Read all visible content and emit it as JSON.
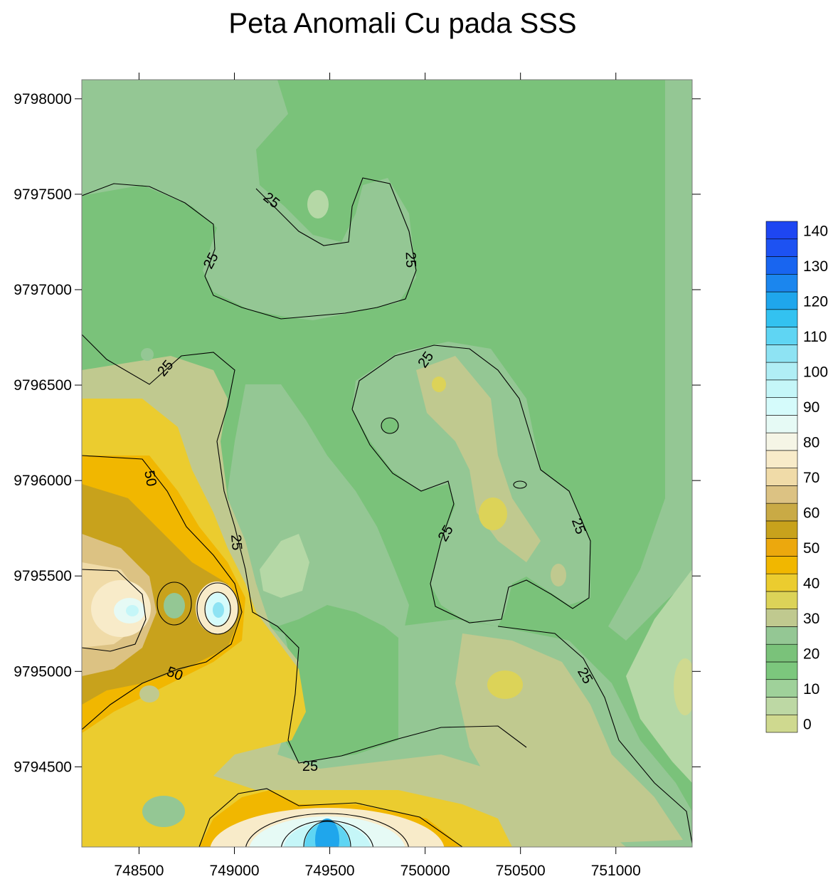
{
  "chart_data": {
    "type": "heatmap",
    "subtype": "filled-contour-map",
    "title": "Peta Anomali Cu pada SSS",
    "x_ticks": [
      748500,
      749000,
      749500,
      750000,
      750500,
      751000
    ],
    "y_ticks": [
      9794500,
      9795000,
      9795500,
      9796000,
      9796500,
      9797000,
      9797500,
      9798000
    ],
    "x_tick_labels": [
      "748500",
      "749000",
      "749500",
      "750000",
      "750500",
      "751000"
    ],
    "y_tick_labels": [
      "9794500",
      "9795000",
      "9795500",
      "9796000",
      "9796500",
      "9797000",
      "9797500",
      "9798000"
    ],
    "xlim": [
      748200,
      751400
    ],
    "ylim": [
      9794080,
      9798100
    ],
    "contour_labels": [
      "25",
      "25",
      "25",
      "25",
      "25",
      "25",
      "25",
      "25",
      "50",
      "50"
    ],
    "legend": {
      "placement": "right",
      "labels": [
        "140",
        "130",
        "120",
        "110",
        "100",
        "90",
        "80",
        "70",
        "60",
        "50",
        "40",
        "30",
        "20",
        "10",
        "0"
      ],
      "levels": [
        0,
        5,
        10,
        15,
        20,
        25,
        30,
        35,
        40,
        45,
        50,
        55,
        60,
        65,
        70,
        75,
        80,
        85,
        90,
        95,
        100,
        105,
        110,
        115,
        120,
        125,
        130,
        135,
        140,
        145
      ],
      "colors": [
        "#cfd98f",
        "#bdd8a4",
        "#9fd19a",
        "#7cc77d",
        "#7ac27a",
        "#94c794",
        "#c0c98f",
        "#dcd358",
        "#ebcc2f",
        "#f1b700",
        "#eca80d",
        "#c8a21c",
        "#c9aa45",
        "#dcc283",
        "#f0dba8",
        "#f8ebc9",
        "#f5f5e6",
        "#e6faf5",
        "#d5fbfb",
        "#c5f6f8",
        "#b0eef5",
        "#8ee3f3",
        "#5fd5f3",
        "#33c2f0",
        "#1fa6ec",
        "#1b86ee",
        "#1865f0",
        "#1d52f2",
        "#1e46f2"
      ]
    },
    "grid": false
  }
}
